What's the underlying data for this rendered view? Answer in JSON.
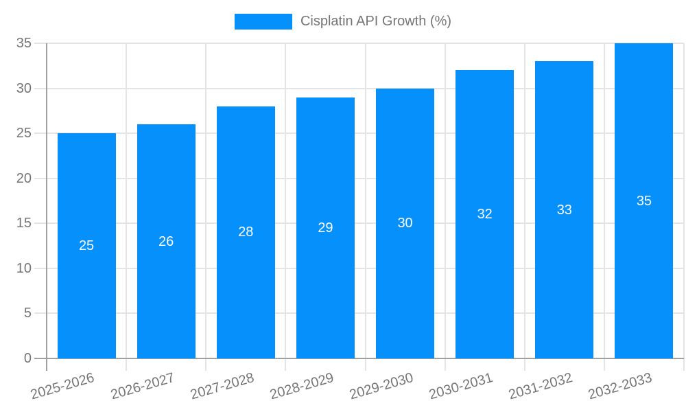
{
  "chart_data": {
    "type": "bar",
    "legend": "Cisplatin API Growth (%)",
    "legend_position": "top-center",
    "categories": [
      "2025-2026",
      "2026-2027",
      "2027-2028",
      "2028-2029",
      "2029-2030",
      "2030-2031",
      "2031-2032",
      "2032-2033"
    ],
    "values": [
      25,
      26,
      28,
      29,
      30,
      32,
      33,
      35
    ],
    "series": [
      {
        "name": "Cisplatin API Growth (%)",
        "values": [
          25,
          26,
          28,
          29,
          30,
          32,
          33,
          35
        ]
      }
    ],
    "value_labels_shown_inside_bars": true,
    "xlabel": "",
    "ylabel": "",
    "ylim": [
      0,
      35
    ],
    "yticks": [
      0,
      5,
      10,
      15,
      20,
      25,
      30,
      35
    ],
    "grid": true,
    "xtick_rotation_deg": -16,
    "colors": {
      "bar": "#0590fb",
      "value_label": "#ffffff",
      "grid_line": "#e4e4e4",
      "axis_line": "#a0a0a0",
      "tick_label": "#757575",
      "legend_text": "#757575",
      "background": "#ffffff"
    }
  }
}
